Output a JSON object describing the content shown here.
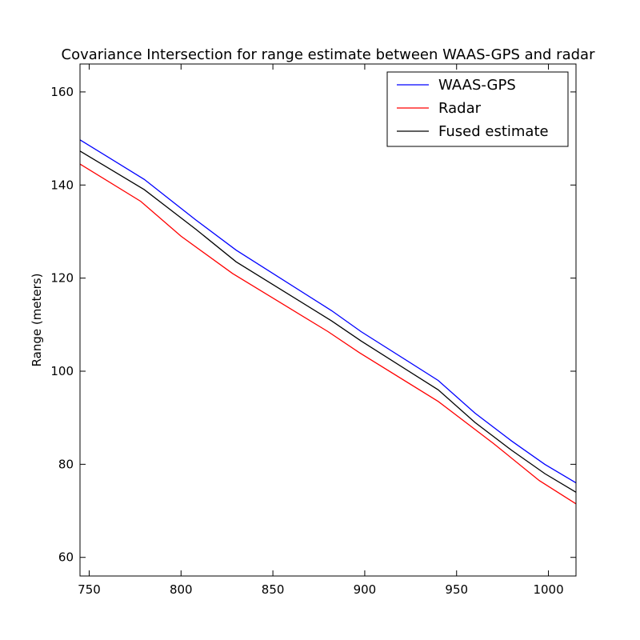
{
  "chart_data": {
    "type": "line",
    "title": "Covariance Intersection for range estimate between WAAS-GPS and radar",
    "xlabel": "",
    "ylabel": "Range (meters)",
    "xlim": [
      745,
      1015
    ],
    "ylim": [
      56,
      166
    ],
    "xticks": [
      750,
      800,
      850,
      900,
      950,
      1000
    ],
    "yticks": [
      60,
      80,
      100,
      120,
      140,
      160
    ],
    "grid": false,
    "legend_position": "top-right",
    "series": [
      {
        "name": "WAAS-GPS",
        "color": "#0000ff",
        "x": [
          745,
          780,
          808,
          830,
          882,
          898,
          940,
          960,
          980,
          998,
          1015
        ],
        "y": [
          149.7,
          141.2,
          132.5,
          126.0,
          113.0,
          108.5,
          98.0,
          91.0,
          85.0,
          80.0,
          76.0
        ]
      },
      {
        "name": "Radar",
        "color": "#ff0000",
        "x": [
          745,
          778,
          800,
          828,
          880,
          897,
          940,
          970,
          995,
          1015
        ],
        "y": [
          144.5,
          136.5,
          129.0,
          121.0,
          108.5,
          104.0,
          93.5,
          84.5,
          76.5,
          71.5
        ]
      },
      {
        "name": "Fused estimate",
        "color": "#000000",
        "x": [
          745,
          780,
          808,
          830,
          882,
          898,
          940,
          960,
          980,
          998,
          1015
        ],
        "y": [
          147.3,
          139.0,
          130.5,
          123.5,
          110.8,
          106.5,
          96.0,
          89.0,
          83.0,
          78.0,
          74.0
        ]
      }
    ]
  }
}
